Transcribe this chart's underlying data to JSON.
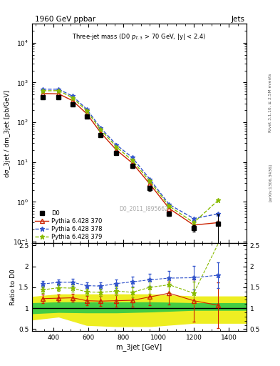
{
  "title_top": "1960 GeV ppbar",
  "title_right": "Jets",
  "watermark": "D0_2011_I895662",
  "xlabel": "m_3jet [GeV]",
  "ylabel": "dσ_3jet / dm_3jet [pb/GeV]",
  "ylabel_ratio": "Ratio to D0",
  "right_label_top": "Rivet 3.1.10, ≥ 2.5M events",
  "right_label_bot": "[arXiv:1306.3436]",
  "xlim": [
    280,
    1500
  ],
  "ylim_main": [
    0.09,
    30000
  ],
  "ylim_ratio": [
    0.45,
    2.55
  ],
  "d0_x": [
    340,
    430,
    510,
    590,
    670,
    760,
    850,
    950,
    1060,
    1200,
    1340
  ],
  "d0_y": [
    430,
    420,
    280,
    140,
    47,
    17,
    8.0,
    2.2,
    0.5,
    0.22,
    0.28
  ],
  "d0_yerr": [
    25,
    22,
    18,
    10,
    3.5,
    1.5,
    0.8,
    0.3,
    0.06,
    0.04,
    0.2
  ],
  "p370_x": [
    340,
    430,
    510,
    590,
    670,
    760,
    850,
    950,
    1060,
    1200,
    1340
  ],
  "p370_y": [
    530,
    520,
    350,
    165,
    55,
    20,
    9.5,
    2.8,
    0.68,
    0.26,
    0.3
  ],
  "p378_x": [
    340,
    430,
    510,
    590,
    670,
    760,
    850,
    950,
    1060,
    1200,
    1340
  ],
  "p378_y": [
    680,
    680,
    455,
    215,
    72,
    27,
    13,
    3.7,
    0.86,
    0.38,
    0.5
  ],
  "p379_x": [
    340,
    430,
    510,
    590,
    670,
    760,
    850,
    950,
    1060,
    1200,
    1340
  ],
  "p379_y": [
    620,
    625,
    415,
    195,
    65,
    24,
    11,
    3.3,
    0.78,
    0.3,
    1.1
  ],
  "ratio_p370_x": [
    340,
    430,
    510,
    590,
    670,
    760,
    850,
    950,
    1060,
    1200,
    1340
  ],
  "ratio_p370_y": [
    1.23,
    1.24,
    1.25,
    1.18,
    1.17,
    1.18,
    1.19,
    1.27,
    1.36,
    1.18,
    1.07
  ],
  "ratio_p370_yerr": [
    0.1,
    0.09,
    0.1,
    0.11,
    0.12,
    0.14,
    0.16,
    0.2,
    0.28,
    0.5,
    0.55
  ],
  "ratio_p378_x": [
    340,
    430,
    510,
    590,
    670,
    760,
    850,
    950,
    1060,
    1200,
    1340
  ],
  "ratio_p378_y": [
    1.58,
    1.62,
    1.62,
    1.54,
    1.53,
    1.59,
    1.63,
    1.68,
    1.72,
    1.73,
    1.79
  ],
  "ratio_p378_yerr": [
    0.08,
    0.07,
    0.08,
    0.08,
    0.09,
    0.1,
    0.12,
    0.15,
    0.18,
    0.28,
    0.3
  ],
  "ratio_p379_x": [
    340,
    430,
    510,
    590,
    670,
    760,
    850,
    950,
    1060,
    1200,
    1340
  ],
  "ratio_p379_y": [
    1.44,
    1.49,
    1.48,
    1.39,
    1.38,
    1.41,
    1.38,
    1.5,
    1.56,
    1.36,
    3.93
  ],
  "ratio_p379_yerr": [
    0.08,
    0.07,
    0.08,
    0.08,
    0.09,
    0.1,
    0.12,
    0.15,
    0.18,
    0.28,
    0.4
  ],
  "green_band_x": [
    280,
    430,
    590,
    760,
    950,
    1200,
    1500
  ],
  "green_band_lo": [
    0.88,
    0.91,
    0.9,
    0.9,
    0.92,
    0.96,
    0.96
  ],
  "green_band_hi": [
    1.12,
    1.14,
    1.14,
    1.14,
    1.14,
    1.12,
    1.12
  ],
  "yellow_band_x": [
    280,
    430,
    590,
    760,
    950,
    1200,
    1500
  ],
  "yellow_band_lo": [
    0.73,
    0.8,
    0.6,
    0.57,
    0.57,
    0.65,
    0.65
  ],
  "yellow_band_hi": [
    1.27,
    1.33,
    1.33,
    1.33,
    1.33,
    1.28,
    1.28
  ],
  "color_d0": "#000000",
  "color_p370": "#cc2200",
  "color_p378": "#3355cc",
  "color_p379": "#88bb00",
  "color_green": "#44cc44",
  "color_yellow": "#eeee22"
}
